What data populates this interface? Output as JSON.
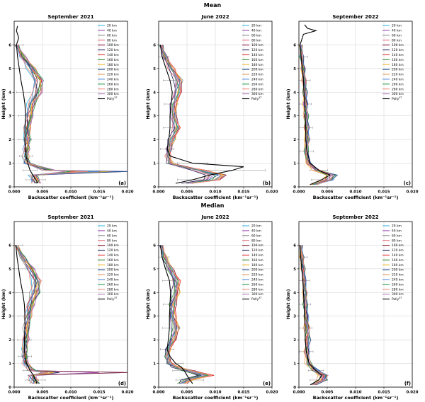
{
  "figure": {
    "row_titles": [
      "Mean",
      "Median"
    ],
    "legend_labels": [
      "20 km",
      "40 km",
      "60 km",
      "80 km",
      "100 km",
      "120 km",
      "140 km",
      "160 km",
      "180 km",
      "200 km",
      "220 km",
      "240 km",
      "260 km",
      "280 km",
      "300 km",
      "Polly"
    ],
    "legend_suffix": "XT",
    "series_colors": [
      "#3cb6e6",
      "#9b4fb0",
      "#8c8c8c",
      "#e0707a",
      "#8b1c3a",
      "#24245e",
      "#e03030",
      "#2e8b2e",
      "#f2b72e",
      "#1f4e8c",
      "#e89a5a",
      "#5a8fd8",
      "#2a9d4a",
      "#f28c7a",
      "#b07ab8",
      "#000000"
    ]
  },
  "chart_data": [
    {
      "type": "line",
      "title": "September 2021",
      "panel_label": "(a)",
      "xlabel": "Backscatter coefficient (km⁻¹sr⁻¹)",
      "ylabel": "Height (km)",
      "xlim": [
        0,
        0.02
      ],
      "ylim": [
        0,
        7
      ],
      "xticks": [
        "0.000",
        "0.005",
        "0.010",
        "0.015",
        "0.020"
      ],
      "yticks": [
        "0",
        "1",
        "2",
        "3",
        "4",
        "5",
        "6"
      ],
      "grid": true,
      "legend": "top-right",
      "profile": "sep21_mean"
    },
    {
      "type": "line",
      "title": "June 2022",
      "panel_label": "(b)",
      "xlabel": "Backscatter coefficient (km⁻¹sr⁻¹)",
      "ylabel": "Height (km)",
      "xlim": [
        0,
        0.02
      ],
      "ylim": [
        0,
        7
      ],
      "xticks": [
        "0.000",
        "0.005",
        "0.010",
        "0.015",
        "0.020"
      ],
      "yticks": [
        "0",
        "1",
        "2",
        "3",
        "4",
        "5",
        "6"
      ],
      "grid": true,
      "legend": "top-right",
      "profile": "jun22_mean"
    },
    {
      "type": "line",
      "title": "September 2022",
      "panel_label": "(c)",
      "xlabel": "Backscatter coefficient (km⁻¹sr⁻¹)",
      "ylabel": "Height (km)",
      "xlim": [
        0,
        0.02
      ],
      "ylim": [
        0,
        7
      ],
      "xticks": [
        "0.000",
        "0.005",
        "0.010",
        "0.015",
        "0.020"
      ],
      "yticks": [
        "0",
        "1",
        "2",
        "3",
        "4",
        "5",
        "6"
      ],
      "grid": true,
      "legend": "top-right",
      "profile": "sep22_mean"
    },
    {
      "type": "line",
      "title": "September 2021",
      "panel_label": "(d)",
      "xlabel": "Backscatter coefficient (km⁻¹sr⁻¹)",
      "ylabel": "Height (km)",
      "xlim": [
        0,
        0.02
      ],
      "ylim": [
        0,
        7
      ],
      "xticks": [
        "0.000",
        "0.005",
        "0.010",
        "0.015",
        "0.020"
      ],
      "yticks": [
        "0",
        "1",
        "2",
        "3",
        "4",
        "5",
        "6"
      ],
      "grid": true,
      "legend": "top-right",
      "profile": "sep21_median"
    },
    {
      "type": "line",
      "title": "June 2022",
      "panel_label": "(e)",
      "xlabel": "Backscatter coefficient (km⁻¹sr⁻¹)",
      "ylabel": "Height (km)",
      "xlim": [
        0,
        0.02
      ],
      "ylim": [
        0,
        7
      ],
      "xticks": [
        "0.000",
        "0.005",
        "0.010",
        "0.015",
        "0.020"
      ],
      "yticks": [
        "0",
        "1",
        "2",
        "3",
        "4",
        "5",
        "6"
      ],
      "grid": true,
      "legend": "top-right",
      "profile": "jun22_median"
    },
    {
      "type": "line",
      "title": "September 2022",
      "panel_label": "(f)",
      "xlabel": "Backscatter coefficient (km⁻¹sr⁻¹)",
      "ylabel": "Height (km)",
      "xlim": [
        0,
        0.02
      ],
      "ylim": [
        0,
        7
      ],
      "xticks": [
        "0.000",
        "0.005",
        "0.010",
        "0.015",
        "0.020"
      ],
      "yticks": [
        "0",
        "1",
        "2",
        "3",
        "4",
        "5",
        "6"
      ],
      "grid": true,
      "legend": "top-right",
      "profile": "sep22_median"
    }
  ],
  "profiles": {
    "sep21_mean": {
      "heights": [
        0.15,
        0.3,
        0.5,
        0.7,
        1.0,
        1.3,
        1.6,
        2.0,
        2.5,
        3.0,
        3.5,
        4.0,
        4.5,
        5.0,
        5.5,
        6.0
      ],
      "polly": [
        0.0042,
        0.0038,
        0.0033,
        0.0028,
        0.0024,
        0.0021,
        0.002,
        0.0019,
        0.0019,
        0.002,
        0.0019,
        0.0016,
        0.0012,
        0.0009,
        0.0006,
        0.0004
      ],
      "polly_top": [
        [
          6.3,
          0.0008
        ],
        [
          6.6,
          0.0004
        ],
        [
          6.8,
          0.0006
        ]
      ],
      "base": [
        0.0038,
        0.0036,
        0.0034,
        0.006,
        0.0022,
        0.002,
        0.0021,
        0.0022,
        0.0023,
        0.0026,
        0.003,
        0.004,
        0.0042,
        0.003,
        0.0015,
        0.0004
      ],
      "spike_height": 0.65,
      "spike_values": [
        0.012,
        0.02,
        0.015,
        0.018,
        0.013,
        0.016,
        0.011,
        0.014,
        0.017,
        0.02,
        0.012,
        0.015,
        0.01,
        0.013,
        0.009
      ]
    },
    "jun22_mean": {
      "heights": [
        0.15,
        0.3,
        0.5,
        0.7,
        0.85,
        1.0,
        1.3,
        1.6,
        2.0,
        2.5,
        3.0,
        3.5,
        4.0,
        4.5,
        5.0,
        5.5,
        6.0
      ],
      "polly": [
        0.003,
        0.006,
        0.009,
        0.013,
        0.015,
        0.006,
        0.002,
        0.0015,
        0.0018,
        0.002,
        0.002,
        0.0022,
        0.0024,
        0.002,
        0.0013,
        0.0006,
        0.0003
      ],
      "base": [
        0.005,
        0.009,
        0.01,
        0.007,
        0.004,
        0.002,
        0.0016,
        0.0017,
        0.0023,
        0.003,
        0.0025,
        0.0026,
        0.0032,
        0.0034,
        0.0022,
        0.001,
        0.0004
      ]
    },
    "sep22_mean": {
      "heights": [
        0.1,
        0.3,
        0.5,
        0.7,
        1.0,
        1.5,
        2.0,
        2.5,
        3.0,
        3.5,
        4.0,
        4.5,
        5.0,
        5.5,
        6.0
      ],
      "polly": [
        0.002,
        0.004,
        0.0055,
        0.0035,
        0.002,
        0.0014,
        0.0012,
        0.0012,
        0.0011,
        0.001,
        0.0009,
        0.0008,
        0.0006,
        0.0004,
        0.0002
      ],
      "polly_top": [
        [
          6.45,
          0.0008
        ],
        [
          6.6,
          0.003
        ],
        [
          6.7,
          0.0015
        ],
        [
          6.85,
          0.001
        ]
      ],
      "base": [
        0.0025,
        0.005,
        0.0055,
        0.003,
        0.0016,
        0.0012,
        0.0014,
        0.0013,
        0.0012,
        0.0011,
        0.001,
        0.0009,
        0.0007,
        0.0005,
        0.0003
      ]
    },
    "sep21_median": {
      "heights": [
        0.15,
        0.3,
        0.5,
        0.7,
        1.0,
        1.3,
        1.6,
        2.0,
        2.5,
        3.0,
        3.5,
        4.0,
        4.5,
        5.0,
        5.5,
        6.0
      ],
      "polly": [
        0.004,
        0.0038,
        0.0034,
        0.0028,
        0.0022,
        0.0019,
        0.0018,
        0.0018,
        0.0019,
        0.0019,
        0.0018,
        0.0015,
        0.0011,
        0.0008,
        0.0005,
        0.0003
      ],
      "base": [
        0.0036,
        0.0034,
        0.003,
        0.003,
        0.002,
        0.0018,
        0.0018,
        0.002,
        0.0021,
        0.0024,
        0.0028,
        0.0036,
        0.0038,
        0.0028,
        0.0014,
        0.0004
      ],
      "spike_height": 0.62,
      "spike_values": [
        0.02,
        0.015,
        0.006,
        0.007,
        0.02,
        0.008,
        0.006,
        0.005,
        0.007,
        0.006,
        0.005,
        0.006,
        0.005,
        0.006,
        0.005
      ]
    },
    "jun22_median": {
      "heights": [
        0.15,
        0.3,
        0.5,
        0.7,
        0.85,
        1.0,
        1.3,
        1.6,
        2.0,
        2.5,
        3.0,
        3.5,
        4.0,
        4.5,
        5.0,
        5.5,
        6.0
      ],
      "polly": [
        0.006,
        0.0055,
        0.005,
        0.0045,
        0.004,
        0.003,
        0.002,
        0.0015,
        0.0017,
        0.0019,
        0.0019,
        0.002,
        0.0021,
        0.0019,
        0.0012,
        0.0006,
        0.0003
      ],
      "base": [
        0.004,
        0.005,
        0.008,
        0.005,
        0.003,
        0.0018,
        0.0015,
        0.0016,
        0.0024,
        0.003,
        0.0024,
        0.0024,
        0.003,
        0.003,
        0.002,
        0.001,
        0.0004
      ]
    },
    "sep22_median": {
      "heights": [
        0.1,
        0.3,
        0.5,
        0.7,
        1.0,
        1.5,
        2.0,
        2.5,
        3.0,
        3.5,
        4.0,
        4.5,
        5.0,
        5.5,
        6.0
      ],
      "polly": [
        0.002,
        0.0035,
        0.004,
        0.003,
        0.0018,
        0.0013,
        0.0011,
        0.0011,
        0.001,
        0.0009,
        0.0008,
        0.0007,
        0.0005,
        0.0003,
        0.0002
      ],
      "base": [
        0.0025,
        0.004,
        0.0042,
        0.0028,
        0.0016,
        0.0013,
        0.0015,
        0.0014,
        0.0012,
        0.0011,
        0.001,
        0.0009,
        0.0007,
        0.0005,
        0.0003
      ]
    }
  }
}
